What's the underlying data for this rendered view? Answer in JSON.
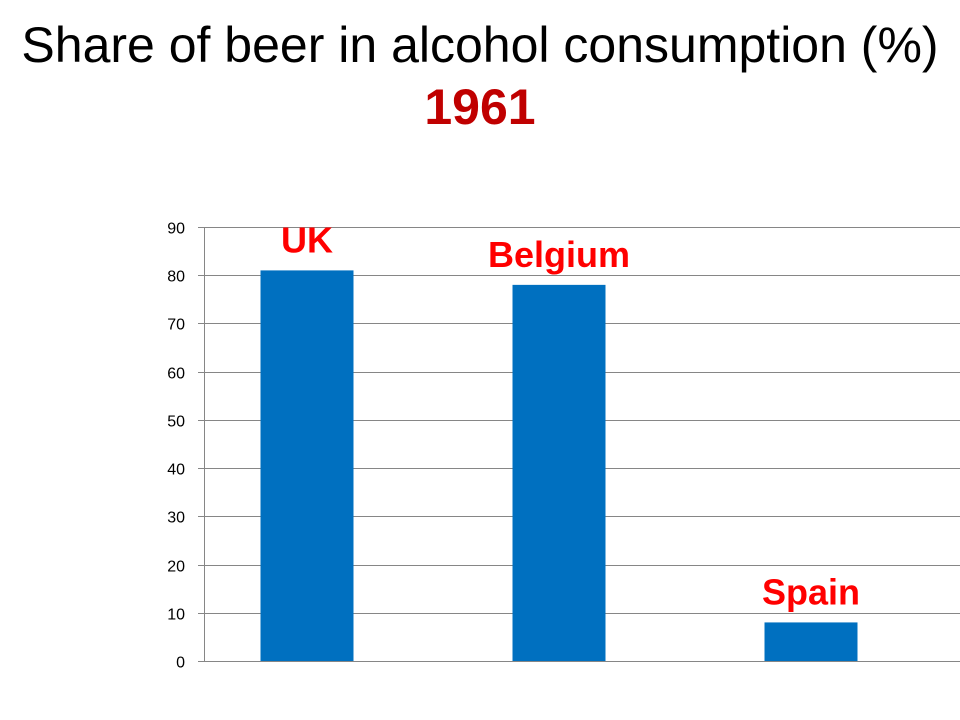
{
  "title": {
    "main": "Share of beer in alcohol consumption (%)",
    "year": "1961"
  },
  "colors": {
    "bar": "#0070c0",
    "label": "#ff0000",
    "year": "#c00000",
    "grid": "#868686"
  },
  "chart_data": {
    "type": "bar",
    "title": "Share of beer in alcohol consumption (%) 1961",
    "categories": [
      "UK",
      "Belgium",
      "Spain"
    ],
    "values": [
      81,
      78,
      8
    ],
    "xlabel": "",
    "ylabel": "",
    "ylim": [
      0,
      90
    ],
    "yticks": [
      0,
      10,
      20,
      30,
      40,
      50,
      60,
      70,
      80,
      90
    ],
    "grid": true,
    "legend": "none",
    "data_labels": [
      "UK",
      "Belgium",
      "Spain"
    ]
  }
}
